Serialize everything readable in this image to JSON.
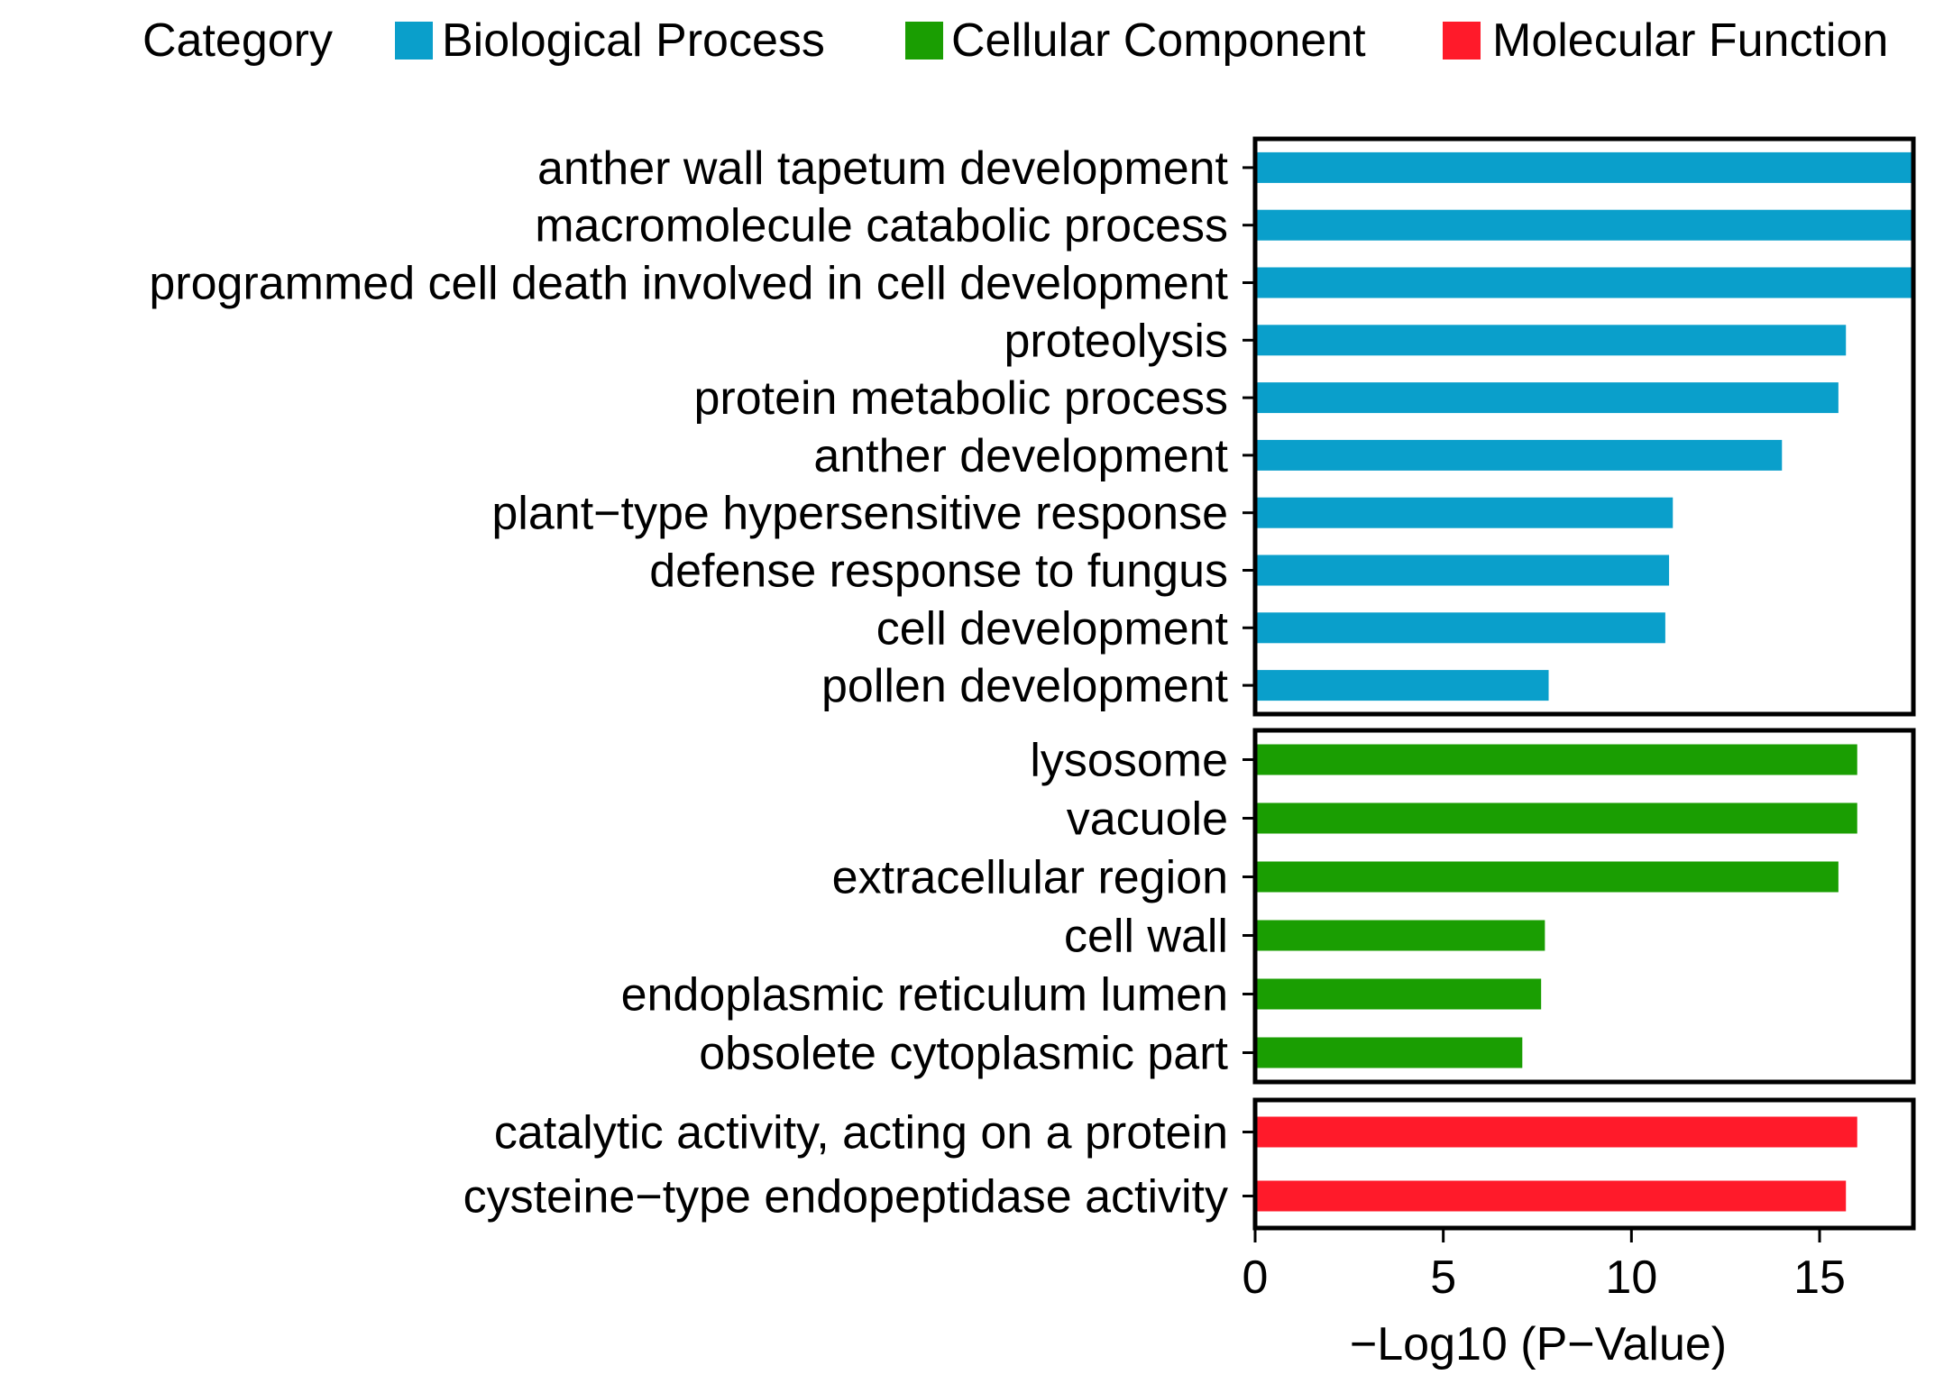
{
  "legend": {
    "title": "Category",
    "items": [
      {
        "label": "Biological Process",
        "color": "#0a9fcb"
      },
      {
        "label": "Cellular Component",
        "color": "#1a9e02"
      },
      {
        "label": "Molecular Function",
        "color": "#ff1a2a"
      }
    ]
  },
  "chart_data": {
    "type": "bar",
    "orientation": "horizontal",
    "title": "",
    "xlabel": "−Log10 (P−Value)",
    "ylabel": "",
    "xlim": [
      0,
      17.5
    ],
    "xticks": [
      0,
      5,
      10,
      15
    ],
    "legend_position": "top",
    "panels": [
      {
        "category": "Biological Process",
        "color": "#0a9fcb",
        "categories": [
          "anther wall tapetum development",
          "macromolecule catabolic process",
          "programmed cell death involved in cell development",
          "proteolysis",
          "protein metabolic process",
          "anther development",
          "plant−type hypersensitive response",
          "defense response to fungus",
          "cell development",
          "pollen development"
        ],
        "values": [
          17.6,
          17.6,
          17.6,
          15.7,
          15.5,
          14.0,
          11.1,
          11.0,
          10.9,
          7.8
        ]
      },
      {
        "category": "Cellular Component",
        "color": "#1a9e02",
        "categories": [
          "lysosome",
          "vacuole",
          "extracellular region",
          "cell wall",
          "endoplasmic reticulum lumen",
          "obsolete cytoplasmic part"
        ],
        "values": [
          16.0,
          16.0,
          15.5,
          7.7,
          7.6,
          7.1
        ]
      },
      {
        "category": "Molecular Function",
        "color": "#ff1a2a",
        "categories": [
          "catalytic activity, acting on a protein",
          "cysteine−type endopeptidase activity"
        ],
        "values": [
          16.0,
          15.7
        ]
      }
    ]
  }
}
